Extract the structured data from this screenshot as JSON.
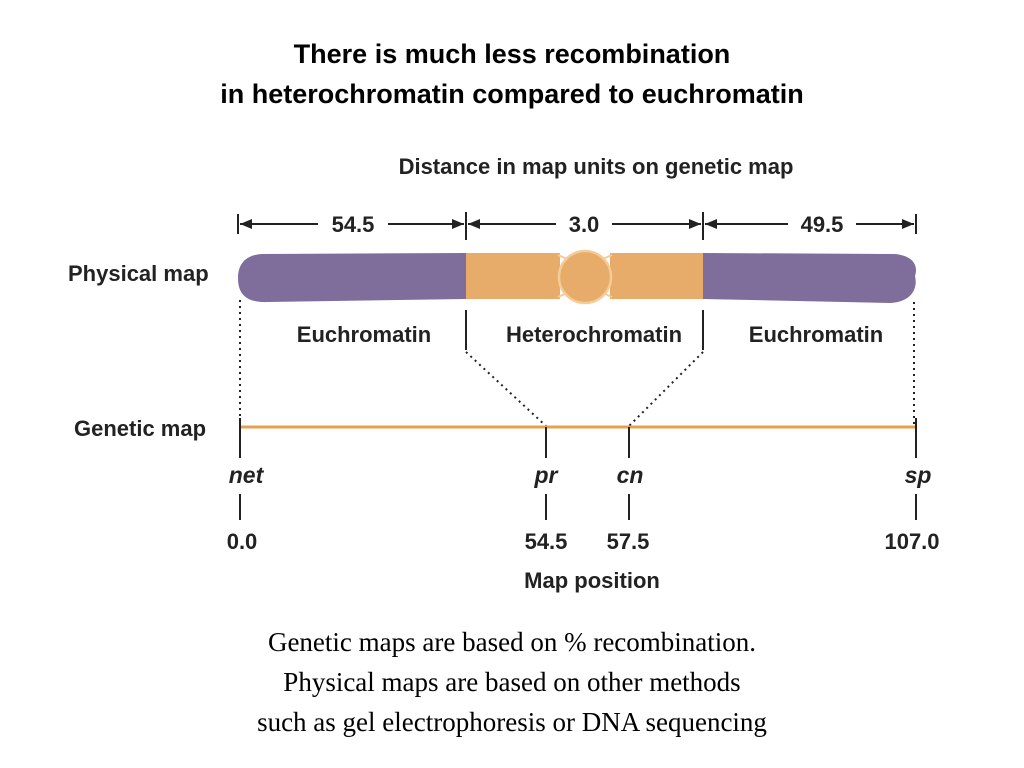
{
  "title": {
    "line1": "There is much less recombination",
    "line2": "in heterochromatin compared to euchromatin"
  },
  "distance_header": "Distance in map units on genetic map",
  "distances": [
    "54.5",
    "3.0",
    "49.5"
  ],
  "physical_map_label": "Physical map",
  "regions": [
    "Euchromatin",
    "Heterochromatin",
    "Euchromatin"
  ],
  "genetic_map_label": "Genetic map",
  "genes": [
    {
      "name": "net",
      "position": "0.0"
    },
    {
      "name": "pr",
      "position": "54.5"
    },
    {
      "name": "cn",
      "position": "57.5"
    },
    {
      "name": "sp",
      "position": "107.0"
    }
  ],
  "map_position_label": "Map position",
  "colors": {
    "euchromatin": "#7f6e9c",
    "heterochromatin": "#e8ac6a",
    "heterochromatin_edge": "#f5cc99",
    "genetic_map_line": "#e8a050"
  },
  "caption": {
    "line1": "Genetic maps are based on % recombination.",
    "line2": "Physical maps are based on other methods",
    "line3": "such as gel electrophoresis or DNA sequencing"
  }
}
